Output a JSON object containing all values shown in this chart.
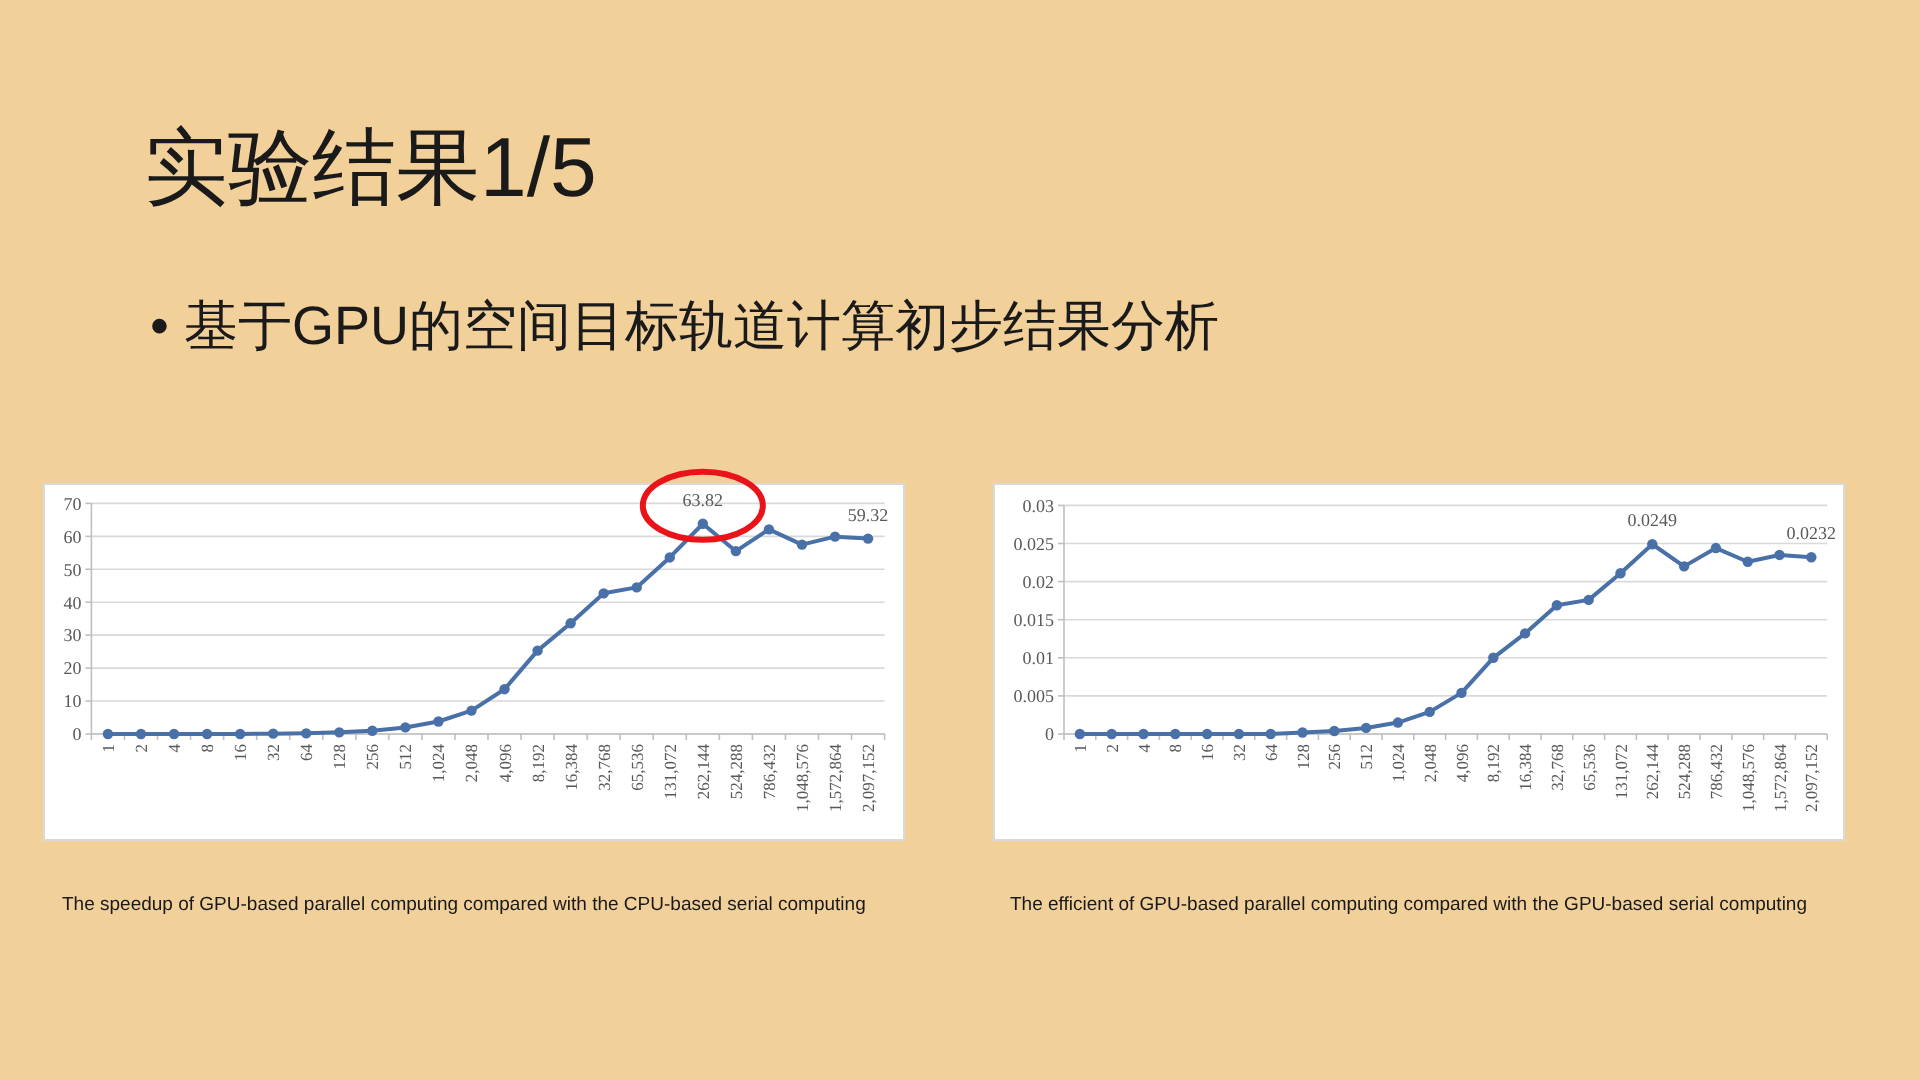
{
  "chart_data": [
    {
      "type": "line",
      "title": "实验结果1/5",
      "subtitle": "• 基于GPU的空间目标轨道计算初步结果分析",
      "categories": [
        "1",
        "2",
        "4",
        "8",
        "16",
        "32",
        "64",
        "128",
        "256",
        "512",
        "1,024",
        "2,048",
        "4,096",
        "8,192",
        "16,384",
        "32,768",
        "65,536",
        "131,072",
        "262,144",
        "524,288",
        "786,432",
        "1,048,576",
        "1,572,864",
        "2,097,152"
      ],
      "series": [
        {
          "color": "#4a70a8",
          "values": [
            0,
            0,
            0,
            0,
            0,
            0.1,
            0.2,
            0.5,
            1,
            2,
            3.8,
            7.1,
            13.6,
            25.3,
            33.6,
            42.7,
            44.5,
            53.6,
            63.82,
            55.5,
            62.1,
            57.5,
            59.9,
            59.32
          ],
          "value_labels": [
            null,
            null,
            null,
            null,
            null,
            null,
            null,
            null,
            null,
            null,
            null,
            null,
            null,
            null,
            null,
            null,
            null,
            null,
            "63.82",
            null,
            null,
            null,
            null,
            "59.32"
          ]
        }
      ],
      "ylim": [
        0,
        70
      ],
      "yticks": [
        0,
        10,
        20,
        30,
        40,
        50,
        60,
        70
      ],
      "grid": "y",
      "marker": "circle",
      "line_style": "solid",
      "annotations": [
        "The speedup of GPU-based parallel computing compared with the CPU-based serial computing"
      ]
    },
    {
      "type": "line",
      "categories": [
        "1",
        "2",
        "4",
        "8",
        "16",
        "32",
        "64",
        "128",
        "256",
        "512",
        "1,024",
        "2,048",
        "4,096",
        "8,192",
        "16,384",
        "32,768",
        "65,536",
        "131,072",
        "262,144",
        "524,288",
        "786,432",
        "1,048,576",
        "1,572,864",
        "2,097,152"
      ],
      "series": [
        {
          "color": "#4a70a8",
          "values": [
            0,
            0,
            0,
            0,
            0,
            0,
            0,
            0.0002,
            0.0004,
            0.0008,
            0.0015,
            0.0029,
            0.0054,
            0.01,
            0.0132,
            0.0169,
            0.0176,
            0.0211,
            0.0249,
            0.022,
            0.0244,
            0.0226,
            0.0235,
            0.0232
          ],
          "value_labels": [
            null,
            null,
            null,
            null,
            null,
            null,
            null,
            null,
            null,
            null,
            null,
            null,
            null,
            null,
            null,
            null,
            null,
            null,
            "0.0249",
            null,
            null,
            null,
            null,
            "0.0232"
          ]
        }
      ],
      "ylim": [
        0,
        0.03
      ],
      "yticks": [
        0,
        0.005,
        0.01,
        0.015,
        0.02,
        0.025,
        0.03
      ],
      "grid": "y",
      "marker": "circle",
      "line_style": "solid",
      "annotations": [
        "The efficient of GPU-based parallel computing compared with the GPU-based serial computing"
      ]
    }
  ]
}
